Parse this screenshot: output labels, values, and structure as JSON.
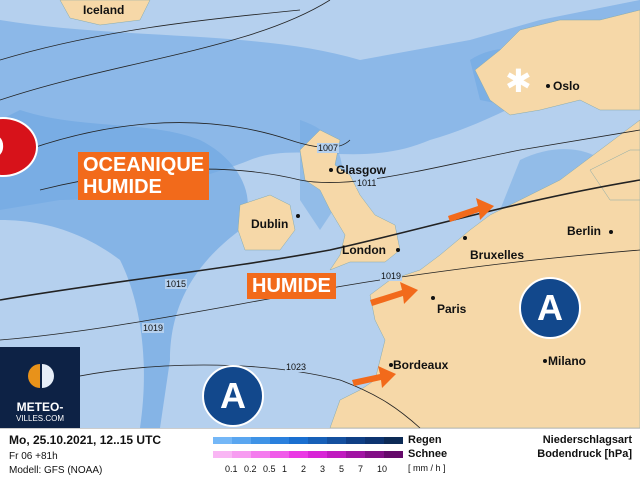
{
  "header": {
    "date": "Mo, 25.10.2021, 12..15 UTC",
    "run": "Fr 06 +81h",
    "model": "Modell: GFS (NOAA)"
  },
  "legend": {
    "rain_label": "Regen",
    "snow_label": "Schnee",
    "unit": "[ mm / h ]",
    "ticks": [
      "0.1",
      "0.2",
      "0.5",
      "1",
      "2",
      "3",
      "5",
      "7",
      "10"
    ],
    "rain_colors": [
      "#74b7f7",
      "#5aa6f0",
      "#3f93e6",
      "#2a80dd",
      "#1a6fd0",
      "#1760b8",
      "#14509f",
      "#0f3f85",
      "#0d3470",
      "#0c2a55"
    ],
    "snow_colors": [
      "#f9b6f4",
      "#f79cf1",
      "#f47cee",
      "#f05ae9",
      "#ea38e4",
      "#d824d6",
      "#c019bf",
      "#a113a3",
      "#830e86",
      "#65096a"
    ],
    "type_label": "Niederschlagsart",
    "pressure_label": "Bodendruck [hPa]"
  },
  "map": {
    "colors": {
      "sea": "#b5d0ee",
      "land": "#f6d8a8",
      "precip": "#5a9be0",
      "arrow": "#f26a1b"
    },
    "cities": [
      "Iceland",
      "Oslo",
      "Glasgow",
      "Dublin",
      "London",
      "Bruxelles",
      "Berlin",
      "Paris",
      "Bordeaux",
      "Milano"
    ],
    "isobars": [
      "1007",
      "1011",
      "1015",
      "1019",
      "1019",
      "1023"
    ],
    "annotations": {
      "oceanique": "OCEANIQUE",
      "humide1": "HUMIDE",
      "humide2": "HUMIDE"
    },
    "pressure_centers": {
      "low": "D",
      "high1": "A",
      "high2": "A"
    },
    "snow_icon": "snowflake-icon"
  },
  "logo": {
    "line1": "METEO-",
    "line2": "VILLES.COM"
  }
}
